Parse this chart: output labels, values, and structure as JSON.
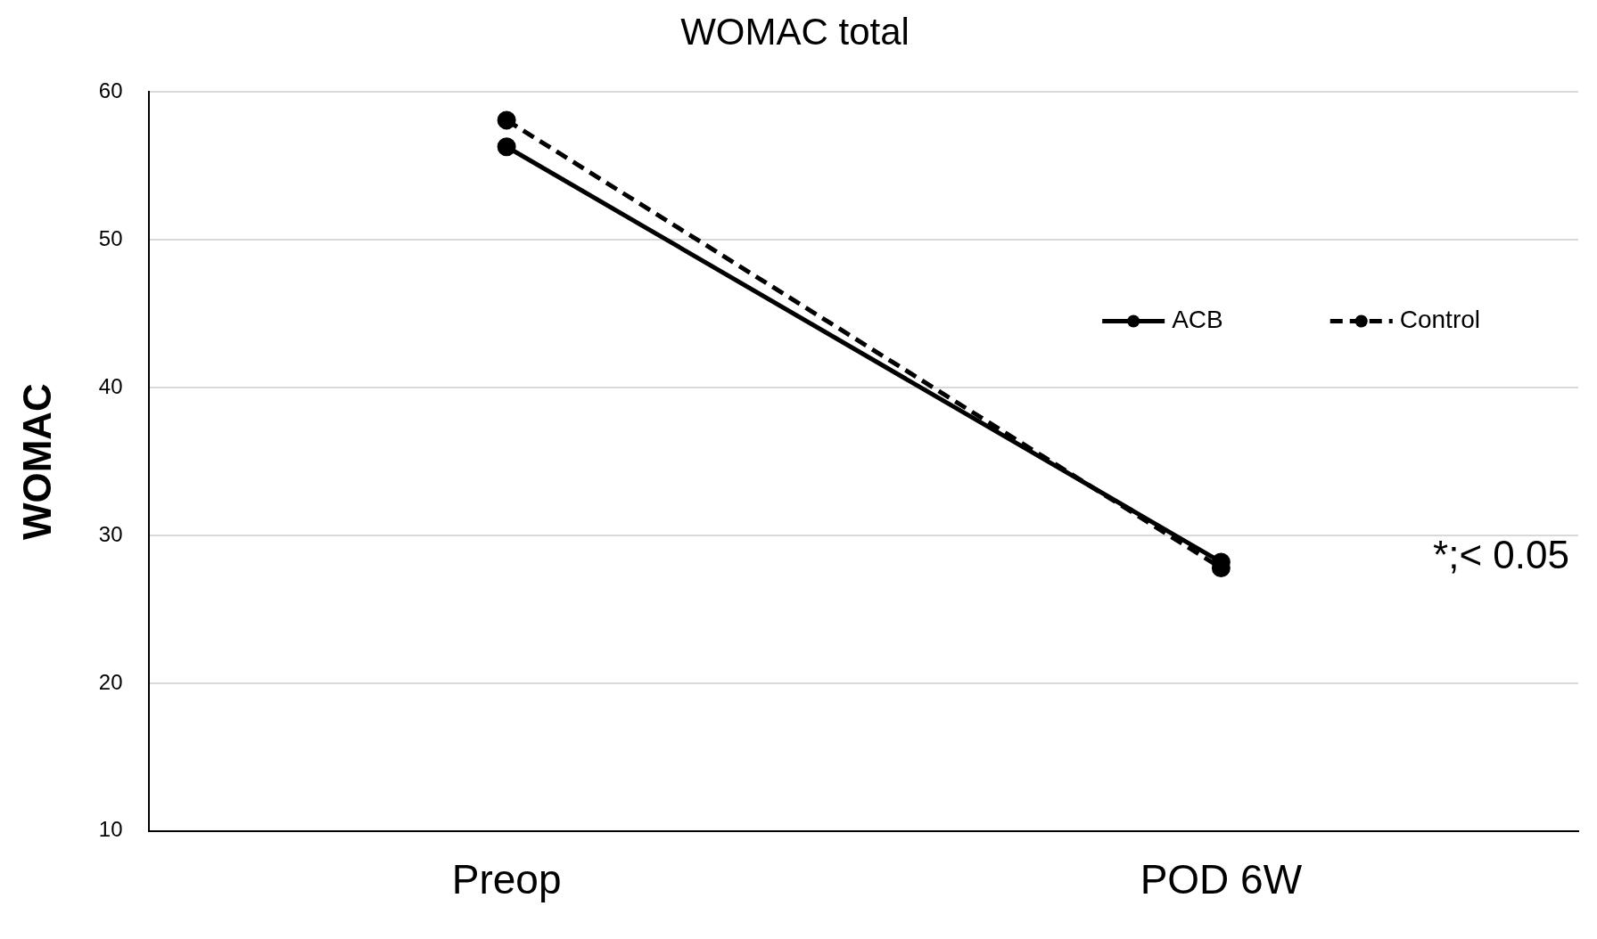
{
  "chart_data": {
    "type": "line",
    "title": "WOMAC total",
    "ylabel": "WOMAC",
    "categories": [
      "Preop",
      "POD 6W"
    ],
    "series": [
      {
        "name": "ACB",
        "color": "#000000",
        "values": [
          56.3,
          28.2
        ],
        "line_style": "solid"
      },
      {
        "name": "Control",
        "color": "#000000",
        "values": [
          58.1,
          27.8
        ],
        "line_style": "dashed"
      }
    ],
    "ylim": [
      10,
      60
    ],
    "yticks": [
      10,
      20,
      30,
      40,
      50,
      60
    ],
    "grid": "y",
    "legend": "top right",
    "marker": "circle",
    "annotations": [
      "*;< 0.05"
    ]
  }
}
